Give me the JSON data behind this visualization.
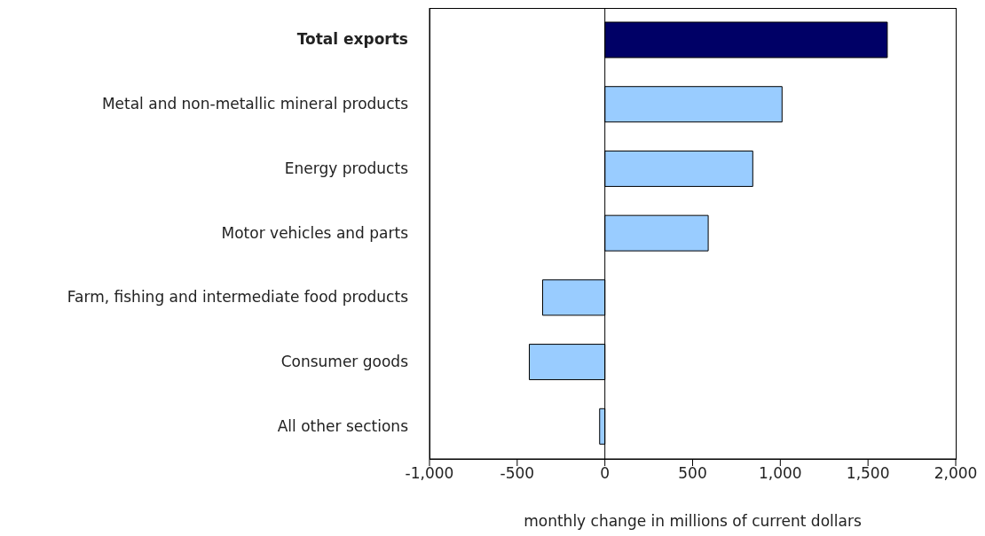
{
  "chart_data": {
    "type": "bar",
    "orientation": "horizontal",
    "categories": [
      "Total exports",
      "Metal and non-metallic mineral products",
      "Energy products",
      "Motor vehicles and parts",
      "Farm, fishing and intermediate food products",
      "Consumer goods",
      "All other sections"
    ],
    "values": [
      1610,
      1010,
      843,
      589,
      -355,
      -431,
      -30
    ],
    "colors": [
      "#000066",
      "#99ccff",
      "#99ccff",
      "#99ccff",
      "#99ccff",
      "#99ccff",
      "#99ccff"
    ],
    "xlim": [
      -1000,
      2000
    ],
    "xticks": [
      {
        "value": -1000,
        "label": "-1,000"
      },
      -500,
      0,
      500,
      {
        "value": 1000,
        "label": "1,000"
      },
      {
        "value": 1500,
        "label": "1,500"
      },
      {
        "value": 2000,
        "label": "2,000"
      }
    ],
    "xlabel": "monthly change in millions of current dollars",
    "grid": false,
    "legend": false,
    "ref_lines": [
      {
        "axis": "x",
        "value": 0,
        "color": "#000000"
      }
    ]
  }
}
